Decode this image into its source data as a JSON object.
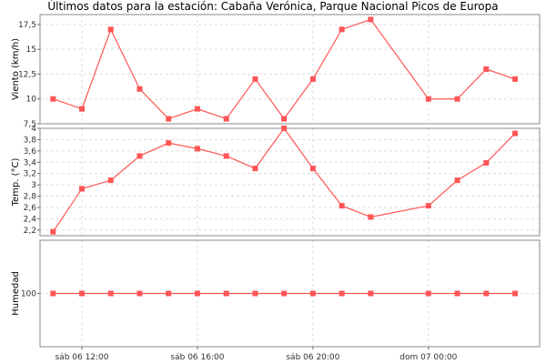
{
  "chart_data": {
    "type": "line",
    "title": "Últimos datos para la estación: Cabaña Verónica, Parque Nacional Picos de Europa",
    "series_color": "#ff5555",
    "x_tick_labels": [
      "sáb 06 12:00",
      "sáb 06 16:00",
      "sáb 06 20:00",
      "dom 07 00:00"
    ],
    "x_tick_hours": [
      12,
      16,
      20,
      24
    ],
    "x_range_hours": [
      10.55,
      27.85
    ],
    "x_hours": [
      11.0,
      12.0,
      13.0,
      14.0,
      15.0,
      16.0,
      17.0,
      18.0,
      19.0,
      20.0,
      21.0,
      22.0,
      24.0,
      25.0,
      26.0,
      27.0
    ],
    "panels": [
      {
        "ylabel": "Viento (km/h)",
        "ylim": [
          7.5,
          18.5
        ],
        "y_ticks": [
          7.5,
          10,
          12.5,
          15,
          17.5
        ],
        "y_tick_labels": [
          "7,5",
          "10",
          "12,5",
          "15",
          "17,5"
        ],
        "values": [
          10,
          9,
          17,
          11,
          8,
          9,
          8,
          12,
          8,
          12,
          17,
          18,
          10,
          10,
          13,
          12
        ]
      },
      {
        "ylabel": "Temp. (°C)",
        "ylim": [
          2.1,
          4.0
        ],
        "y_ticks": [
          2.2,
          2.4,
          2.6,
          2.8,
          3.0,
          3.2,
          3.4,
          3.6,
          3.8,
          4.0
        ],
        "y_tick_labels": [
          "2,2",
          "2,4",
          "2,6",
          "2,8",
          "3",
          "3,2",
          "3,4",
          "3,6",
          "3,8",
          "4"
        ],
        "values": [
          2.17,
          2.93,
          3.08,
          3.51,
          3.74,
          3.64,
          3.51,
          3.29,
          4.0,
          3.29,
          2.63,
          2.43,
          2.63,
          3.08,
          3.39,
          3.91
        ]
      },
      {
        "ylabel": "Humedad",
        "ylim": [
          99.5,
          100.5
        ],
        "y_ticks": [
          100
        ],
        "y_tick_labels": [
          "100"
        ],
        "values": [
          100,
          100,
          100,
          100,
          100,
          100,
          100,
          100,
          100,
          100,
          100,
          100,
          100,
          100,
          100,
          100
        ]
      }
    ]
  }
}
